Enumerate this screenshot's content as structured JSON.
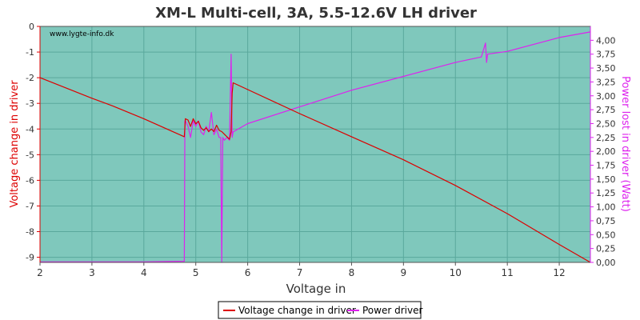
{
  "chart_data": {
    "type": "line",
    "title": "XM-L Multi-cell, 3A, 5.5-12.6V LH driver",
    "watermark": "www.lygte-info.dk",
    "xlabel": "Voltage in",
    "ylabel_left": "Voltage change in driver",
    "ylabel_right": "Power lost in driver (Watt)",
    "xlim": [
      2,
      12.6
    ],
    "ylim_left": [
      -9.2,
      0
    ],
    "ylim_right": [
      0,
      4.25
    ],
    "x_ticks": [
      "2",
      "3",
      "4",
      "5",
      "6",
      "7",
      "8",
      "9",
      "10",
      "11",
      "12"
    ],
    "y_left_ticks": [
      "0",
      "-1",
      "-2",
      "-3",
      "-4",
      "-5",
      "-6",
      "-7",
      "-8",
      "-9"
    ],
    "y_right_ticks": [
      "0,00",
      "0,25",
      "0,50",
      "0,75",
      "1,00",
      "1,25",
      "1,50",
      "1,75",
      "2,00",
      "2,25",
      "2,50",
      "2,75",
      "3,00",
      "3,25",
      "3,50",
      "3,75",
      "4,00"
    ],
    "grid": true,
    "legend_position": "bottom",
    "series": [
      {
        "name": "Voltage change in driver",
        "axis": "left",
        "color": "#dd0000",
        "x": [
          2.0,
          3.0,
          3.4,
          4.0,
          4.78,
          4.8,
          4.85,
          4.9,
          4.95,
          5.0,
          5.05,
          5.1,
          5.15,
          5.2,
          5.25,
          5.3,
          5.35,
          5.4,
          5.45,
          5.5,
          5.55,
          5.6,
          5.65,
          5.68,
          5.7,
          5.72,
          7.0,
          8.0,
          9.0,
          10.0,
          11.0,
          12.0,
          12.6
        ],
        "values": [
          -2.0,
          -2.8,
          -3.1,
          -3.6,
          -4.3,
          -3.6,
          -3.65,
          -3.9,
          -3.6,
          -3.8,
          -3.7,
          -3.95,
          -4.05,
          -3.95,
          -4.1,
          -4.0,
          -4.1,
          -3.85,
          -4.05,
          -4.1,
          -4.2,
          -4.3,
          -4.4,
          -4.1,
          -2.6,
          -2.2,
          -3.4,
          -4.3,
          -5.2,
          -6.2,
          -7.3,
          -8.5,
          -9.2
        ]
      },
      {
        "name": "Power driver",
        "axis": "right",
        "color": "#dd22ee",
        "x": [
          2.0,
          3.0,
          4.0,
          4.78,
          4.79,
          4.8,
          4.85,
          4.9,
          4.95,
          5.0,
          5.05,
          5.1,
          5.15,
          5.2,
          5.25,
          5.3,
          5.35,
          5.4,
          5.45,
          5.48,
          5.5,
          5.52,
          5.55,
          5.6,
          5.65,
          5.68,
          5.7,
          5.72,
          6.0,
          7.0,
          8.0,
          9.0,
          10.0,
          10.5,
          10.58,
          10.6,
          10.62,
          11.0,
          12.0,
          12.6
        ],
        "values": [
          0.01,
          0.01,
          0.01,
          0.02,
          2.55,
          2.55,
          2.45,
          2.25,
          2.55,
          2.45,
          2.55,
          2.35,
          2.3,
          2.45,
          2.35,
          2.7,
          2.3,
          2.4,
          2.25,
          2.25,
          0.0,
          2.25,
          2.2,
          2.25,
          2.2,
          3.75,
          2.25,
          2.35,
          2.5,
          2.8,
          3.1,
          3.35,
          3.6,
          3.7,
          3.95,
          3.6,
          3.75,
          3.8,
          4.05,
          4.15
        ]
      }
    ]
  }
}
